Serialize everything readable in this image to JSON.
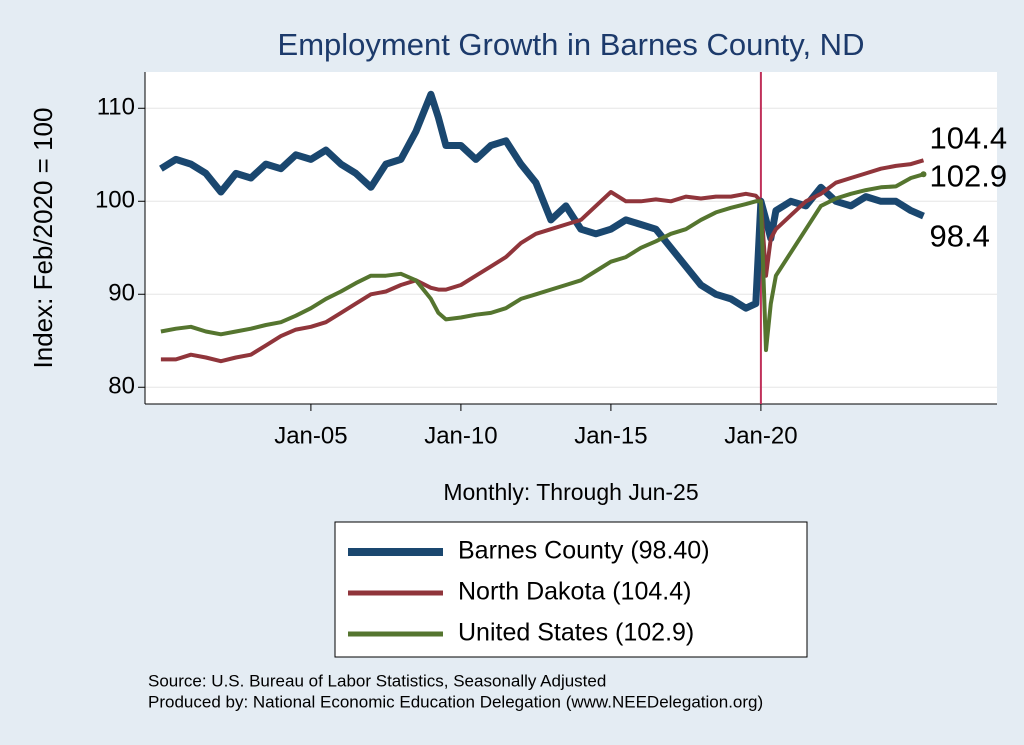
{
  "chart_data": {
    "type": "line",
    "title": "Employment Growth in Barnes  County, ND",
    "ylabel": "Index: Feb/2020 = 100",
    "xlabel": "Monthly: Through Jun-25",
    "notes": [
      "Source: U.S. Bureau of Labor Statistics, Seasonally Adjusted",
      "Produced by: National Economic Education Delegation (www.NEEDelegation.org)"
    ],
    "x": [
      2000,
      2000.5,
      2001,
      2001.5,
      2002,
      2002.5,
      2003,
      2003.5,
      2004,
      2004.5,
      2005,
      2005.5,
      2006,
      2006.5,
      2007,
      2007.5,
      2008,
      2008.5,
      2009,
      2009.25,
      2009.5,
      2010,
      2010.5,
      2011,
      2011.5,
      2012,
      2012.5,
      2013,
      2013.5,
      2014,
      2014.5,
      2015,
      2015.5,
      2016,
      2016.5,
      2017,
      2017.5,
      2018,
      2018.5,
      2019,
      2019.5,
      2019.83,
      2020,
      2020.17,
      2020.33,
      2020.5,
      2021,
      2021.5,
      2022,
      2022.5,
      2023,
      2023.5,
      2024,
      2024.5,
      2025,
      2025.42
    ],
    "series": [
      {
        "name": "Barnes  County (98.40)",
        "color": "#1a476f",
        "values": [
          103.5,
          104.5,
          104,
          103,
          101,
          103,
          102.5,
          104,
          103.5,
          105,
          104.5,
          105.5,
          104,
          103,
          101.5,
          104,
          104.5,
          107.5,
          111.5,
          109,
          106,
          106,
          104.5,
          106,
          106.5,
          104,
          102,
          98,
          99.5,
          97,
          96.5,
          97,
          98,
          97.5,
          97,
          95,
          93,
          91,
          90,
          89.5,
          88.5,
          89,
          100,
          98,
          96,
          99,
          100,
          99.5,
          101.5,
          100,
          99.5,
          100.5,
          100,
          100,
          99,
          98.4
        ]
      },
      {
        "name": "North Dakota (104.4)",
        "color": "#90353b",
        "values": [
          83,
          83,
          83.5,
          83.2,
          82.8,
          83.2,
          83.5,
          84.5,
          85.5,
          86.2,
          86.5,
          87,
          88,
          89,
          90,
          90.3,
          91,
          91.5,
          90.7,
          90.5,
          90.5,
          91,
          92,
          93,
          94,
          95.5,
          96.5,
          97,
          97.5,
          98,
          99.5,
          101,
          100,
          100,
          100.2,
          100,
          100.5,
          100.3,
          100.5,
          100.5,
          100.8,
          100.6,
          100,
          92,
          96,
          97,
          98.5,
          100,
          100.8,
          102,
          102.5,
          103,
          103.5,
          103.8,
          104,
          104.4
        ]
      },
      {
        "name": "United States (102.9)",
        "color": "#55752f",
        "values": [
          86,
          86.3,
          86.5,
          86,
          85.7,
          86,
          86.3,
          86.7,
          87,
          87.7,
          88.5,
          89.5,
          90.3,
          91.2,
          92,
          92,
          92.2,
          91.5,
          89.5,
          88,
          87.3,
          87.5,
          87.8,
          88,
          88.5,
          89.5,
          90,
          90.5,
          91,
          91.5,
          92.5,
          93.5,
          94,
          95,
          95.7,
          96.5,
          97,
          98,
          98.8,
          99.3,
          99.7,
          100,
          100,
          84,
          89,
          92,
          94.5,
          97,
          99.5,
          100.3,
          100.8,
          101.2,
          101.5,
          101.6,
          102.5,
          102.9
        ]
      }
    ],
    "end_labels": [
      "98.4",
      "104.4",
      "102.9"
    ],
    "vline": 2020,
    "vline_color": "#c0305a",
    "xlim": [
      1999.47,
      2027.87
    ],
    "xticks": [
      {
        "value": 2005,
        "label": "Jan-05"
      },
      {
        "value": 2010,
        "label": "Jan-10"
      },
      {
        "value": 2015,
        "label": "Jan-15"
      },
      {
        "value": 2020,
        "label": "Jan-20"
      }
    ],
    "ylim": [
      78.2,
      113.9
    ],
    "yticks": [
      80,
      90,
      100,
      110
    ],
    "grid": true
  }
}
